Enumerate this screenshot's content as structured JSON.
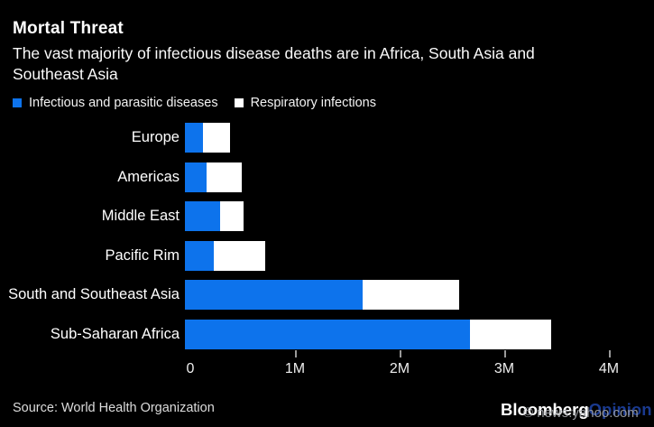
{
  "header": {
    "title": "Mortal Threat",
    "subtitle_lines": [
      "The vast majority of infectious disease deaths are in Africa, South Asia and",
      "Southeast Asia"
    ]
  },
  "legend": [
    {
      "label": "Infectious and parasitic diseases",
      "color": "#0d73ec"
    },
    {
      "label": "Respiratory infections",
      "color": "#ffffff"
    }
  ],
  "colors": {
    "background": "#000000",
    "accent_blue": "#0d73ec",
    "bar_white": "#ffffff",
    "tick": "#9a9a9a",
    "brand_opinion_blue": "#1a3a8f"
  },
  "chart_data": {
    "type": "bar",
    "orientation": "horizontal",
    "stacked": true,
    "title": "Mortal Threat",
    "subtitle": "The vast majority of infectious disease deaths are in Africa, South Asia and Southeast Asia",
    "unit": "deaths, millions",
    "categories": [
      "Europe",
      "Americas",
      "Middle East",
      "Pacific Rim",
      "South and Southeast Asia",
      "Sub-Saharan Africa"
    ],
    "series": [
      {
        "name": "Infectious and parasitic diseases",
        "color": "#0d73ec",
        "values": [
          0.17,
          0.21,
          0.34,
          0.28,
          1.7,
          2.72
        ]
      },
      {
        "name": "Respiratory infections",
        "color": "#ffffff",
        "values": [
          0.26,
          0.33,
          0.22,
          0.49,
          0.92,
          0.78
        ]
      }
    ],
    "xlim": [
      0,
      4
    ],
    "x_ticks": [
      "0",
      "1M",
      "2M",
      "3M",
      "4M"
    ],
    "x_tick_values": [
      0,
      1,
      2,
      3,
      4
    ],
    "grid": false,
    "legend_position": "top-left"
  },
  "footer": {
    "source": "Source: World Health Organization",
    "brand": "Bloomberg",
    "brand_suffix": "Opinion",
    "watermark": "© news.yahoo.com"
  }
}
